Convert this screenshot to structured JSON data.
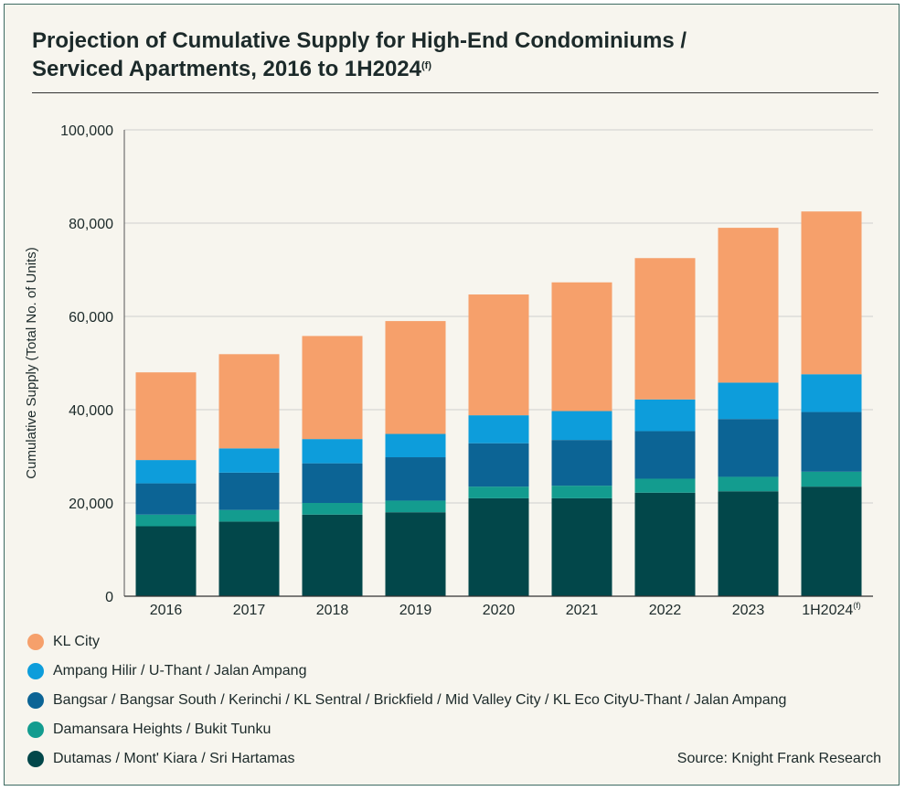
{
  "header": {
    "title_line1": "Projection of Cumulative Supply for High-End Condominiums /",
    "title_line2": "Serviced Apartments, 2016 to 1H2024",
    "title_superscript": "(f)"
  },
  "source": "Source: Knight Frank Research",
  "chart_data": {
    "type": "bar",
    "stacked": true,
    "title": "Projection of Cumulative Supply for High-End Condominiums / Serviced Apartments, 2016 to 1H2024(f)",
    "ylabel": "Cumulative Supply (Total No. of Units)",
    "xlabel": "",
    "ylim": [
      0,
      100000
    ],
    "yticks": [
      0,
      20000,
      40000,
      60000,
      80000,
      100000
    ],
    "ytick_labels": [
      "0",
      "20,000",
      "40,000",
      "60,000",
      "80,000",
      "100,000"
    ],
    "grid": true,
    "legend_position": "bottom",
    "categories": [
      "2016",
      "2017",
      "2018",
      "2019",
      "2020",
      "2021",
      "2022",
      "2023",
      "1H2024"
    ],
    "category_superscripts": [
      "",
      "",
      "",
      "",
      "",
      "",
      "",
      "",
      "(f)"
    ],
    "series": [
      {
        "name": "Dutamas / Mont' Kiara / Sri Hartamas",
        "color": "#02474a",
        "values": [
          15000,
          16000,
          17500,
          18000,
          21000,
          21000,
          22200,
          22500,
          23500
        ]
      },
      {
        "name": "Damansara Heights / Bukit Tunku",
        "color": "#139c8f",
        "values": [
          2500,
          2500,
          2500,
          2500,
          2500,
          2700,
          3000,
          3100,
          3200
        ]
      },
      {
        "name": "Bangsar / Bangsar South / Kerinchi / KL Sentral / Brickfield / Mid Valley City / KL Eco CityU-Thant / Jalan Ampang",
        "color": "#0c6495",
        "values": [
          6700,
          8000,
          8500,
          9300,
          9300,
          9800,
          10200,
          12400,
          12800
        ]
      },
      {
        "name": "Ampang Hilir / U-Thant / Jalan Ampang",
        "color": "#0d9ddb",
        "values": [
          5000,
          5200,
          5200,
          5000,
          6000,
          6200,
          6800,
          7800,
          8100
        ]
      },
      {
        "name": "KL City",
        "color": "#f6a06b",
        "values": [
          18800,
          20200,
          22100,
          24200,
          25900,
          27600,
          30300,
          33200,
          34900
        ]
      }
    ]
  }
}
